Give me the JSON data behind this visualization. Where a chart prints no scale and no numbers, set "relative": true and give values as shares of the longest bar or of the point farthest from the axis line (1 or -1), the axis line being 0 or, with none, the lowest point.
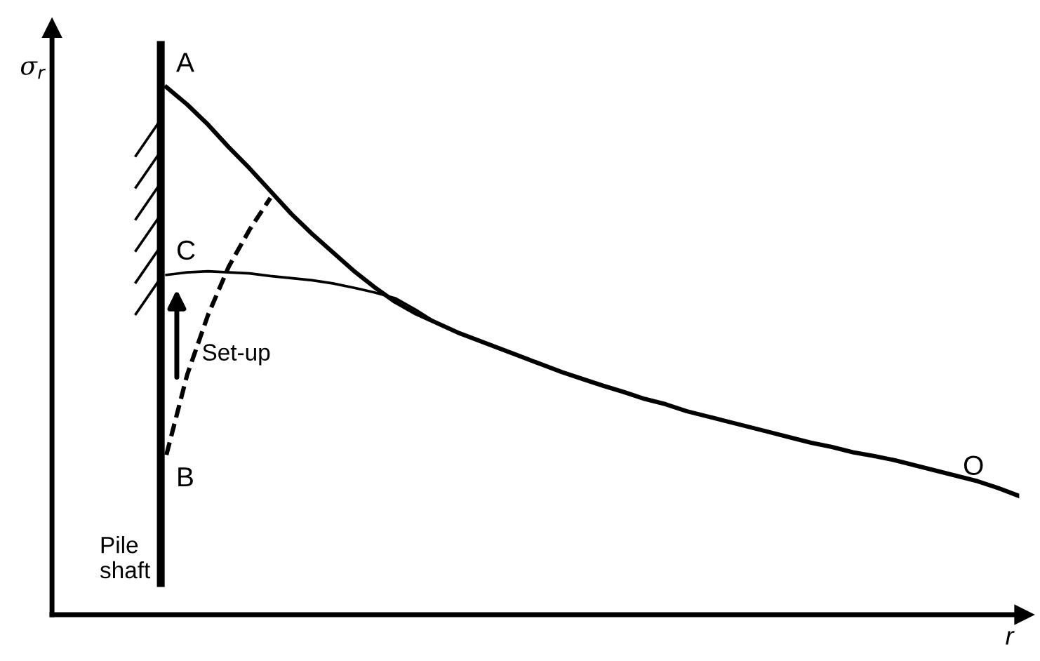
{
  "chart_data": {
    "type": "line",
    "relative": true,
    "ylabel": "σ$_{r}$",
    "xlabel": "r",
    "marker": "none",
    "categories": [
      null,
      null,
      null,
      null,
      null,
      null,
      null,
      null,
      null,
      null,
      null,
      null,
      null,
      null,
      null,
      null,
      null,
      null,
      null,
      null,
      null,
      null,
      null,
      null,
      null,
      null,
      null,
      null,
      null,
      null,
      null,
      null,
      null,
      null,
      null,
      null,
      null,
      null,
      null,
      null,
      null,
      null
    ],
    "series": [
      {
        "color": "#000000",
        "line_style": "solid",
        "values": [
          1.0,
          0.967,
          0.929,
          0.886,
          0.846,
          0.803,
          0.76,
          0.722,
          0.687,
          0.652,
          0.621,
          0.593,
          0.571,
          0.553,
          0.535,
          0.52,
          0.505,
          0.49,
          0.475,
          0.46,
          0.447,
          0.434,
          0.422,
          0.409,
          0.399,
          0.386,
          0.376,
          0.366,
          0.356,
          0.346,
          0.336,
          0.326,
          0.318,
          0.308,
          0.301,
          0.293,
          0.283,
          0.273,
          0.263,
          0.253,
          0.24,
          0.225
        ]
      },
      {
        "color": "#000000",
        "line_style": "solid",
        "values": [
          0.644,
          0.649,
          0.651,
          0.649,
          0.647,
          0.642,
          0.638,
          0.634,
          0.628,
          0.62,
          0.611,
          0.6,
          0.578,
          0.553,
          null,
          null,
          null,
          null,
          null,
          null,
          null,
          null,
          null,
          null,
          null,
          null,
          null,
          null,
          null,
          null,
          null,
          null,
          null,
          null,
          null,
          null,
          null,
          null,
          null,
          null,
          null,
          null
        ]
      },
      {
        "color": "#000000",
        "line_style": "dashed",
        "values": [
          0.303,
          0.455,
          0.568,
          0.66,
          0.73,
          0.79,
          null,
          null,
          null,
          null,
          null,
          null,
          null,
          null,
          null,
          null,
          null,
          null,
          null,
          null,
          null,
          null,
          null,
          null,
          null,
          null,
          null,
          null,
          null,
          null,
          null,
          null,
          null,
          null,
          null,
          null,
          null,
          null,
          null,
          null,
          null,
          null
        ]
      }
    ],
    "annotations": [
      "A",
      "C",
      "B",
      "O",
      "Set-up",
      "Pile shaft"
    ]
  }
}
